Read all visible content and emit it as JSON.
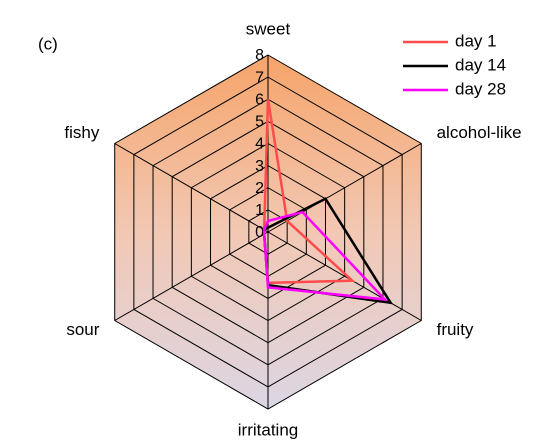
{
  "chart_data": {
    "type": "radar",
    "panel_label": "(c)",
    "categories": [
      "sweet",
      "alcohol-like",
      "fruity",
      "irritating",
      "sour",
      "fishy"
    ],
    "series": [
      {
        "name": "day 1",
        "color": "#ff4b4b",
        "values": [
          6,
          1,
          4.4,
          2.3,
          0.2,
          0.2
        ]
      },
      {
        "name": "day 14",
        "color": "#000000",
        "values": [
          0.2,
          3,
          6.4,
          2.4,
          0.2,
          0.2
        ]
      },
      {
        "name": "day 28",
        "color": "#ff00ff",
        "values": [
          0.5,
          1.8,
          6.1,
          2.5,
          0.2,
          0.2
        ]
      }
    ],
    "rlim": [
      0,
      8
    ],
    "rticks": [
      0,
      1,
      2,
      3,
      4,
      5,
      6,
      7,
      8
    ],
    "legend": "upper right"
  }
}
